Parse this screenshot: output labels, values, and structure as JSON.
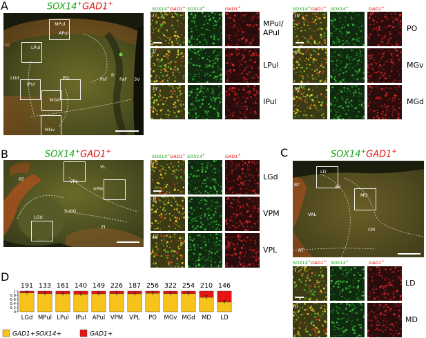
{
  "panels": {
    "A": {
      "letter": "A",
      "title_gene1": "SOX14",
      "title_gene2": "GAD1",
      "regions": {
        "rt": "RT",
        "mpul": "MPul",
        "apul": "APul",
        "lpul": "LPul",
        "lgd": "LGd",
        "ipul": "IPul",
        "po": "PO",
        "mgd": "MGd",
        "mgv": "MGv",
        "psf": "PsF",
        "fr": "fr",
        "paf": "PaF",
        "v3": "3V"
      },
      "insets": {
        "col_merge": "SOX14+GAD1+",
        "col_sox": "SOX14+",
        "col_gad": "GAD1+",
        "rows1": [
          {
            "roman": "i",
            "label": "MPul/\nAPul"
          },
          {
            "roman": "ii",
            "label": "LPul"
          },
          {
            "roman": "iii",
            "label": "IPul"
          }
        ],
        "rows2": [
          {
            "roman": "iv",
            "label": "PO"
          },
          {
            "roman": "v",
            "label": "MGv"
          },
          {
            "roman": "vi",
            "label": "MGd"
          }
        ]
      }
    },
    "B": {
      "letter": "B",
      "title_gene1": "SOX14",
      "title_gene2": "GAD1",
      "regions": {
        "rt": "RT",
        "vl": "VL",
        "vpl": "VPL",
        "vpm": "VPM",
        "subg": "SubG",
        "lgd": "LGd",
        "zi": "ZI"
      },
      "insets": {
        "col_merge": "SOX14+GAD1+",
        "col_sox": "SOX14+",
        "col_gad": "GAD1+",
        "rows": [
          {
            "roman": "i",
            "label": "LGd"
          },
          {
            "roman": "ii",
            "label": "VPM"
          },
          {
            "roman": "iii",
            "label": "VPL"
          }
        ]
      }
    },
    "C": {
      "letter": "C",
      "title_gene1": "SOX14",
      "title_gene2": "GAD1",
      "regions": {
        "rt": "RT",
        "ld": "LD",
        "av": "AV",
        "md": "MD",
        "val": "VAL",
        "cm": "CM",
        "rt2": "RT"
      },
      "insets": {
        "col_merge": "SOX14+GAD1+",
        "col_sox": "SOX14+",
        "col_gad": "GAD1+",
        "rows": [
          {
            "roman": "i",
            "label": "LD"
          },
          {
            "roman": "ii",
            "label": "MD"
          }
        ]
      }
    },
    "D": {
      "letter": "D"
    }
  },
  "chart_data": {
    "type": "bar",
    "stacked": true,
    "categories": [
      "LGd",
      "MPul",
      "LPul",
      "IPul",
      "APul",
      "VPM",
      "VPL",
      "PO",
      "MGv",
      "MGd",
      "MD",
      "LD"
    ],
    "counts": [
      "191",
      "133",
      "161",
      "140",
      "149",
      "226",
      "187",
      "256",
      "322",
      "254",
      "210",
      "146"
    ],
    "series": [
      {
        "name": "GAD1+SOX14+",
        "color": "#f7c21a",
        "values": [
          0.91,
          0.88,
          0.87,
          0.85,
          0.87,
          0.88,
          0.87,
          0.89,
          0.88,
          0.88,
          0.7,
          0.47
        ]
      },
      {
        "name": "GAD1+",
        "color": "#e81414",
        "values": [
          0.09,
          0.12,
          0.13,
          0.15,
          0.13,
          0.12,
          0.13,
          0.11,
          0.12,
          0.12,
          0.3,
          0.53
        ]
      }
    ],
    "ylim": [
      0,
      1
    ],
    "yticks": [
      "0",
      "0.2",
      "0.4",
      "0.6",
      "0.8",
      "1"
    ],
    "legend": {
      "swatch1": "GAD1+SOX14+",
      "swatch2": "GAD1+"
    }
  }
}
